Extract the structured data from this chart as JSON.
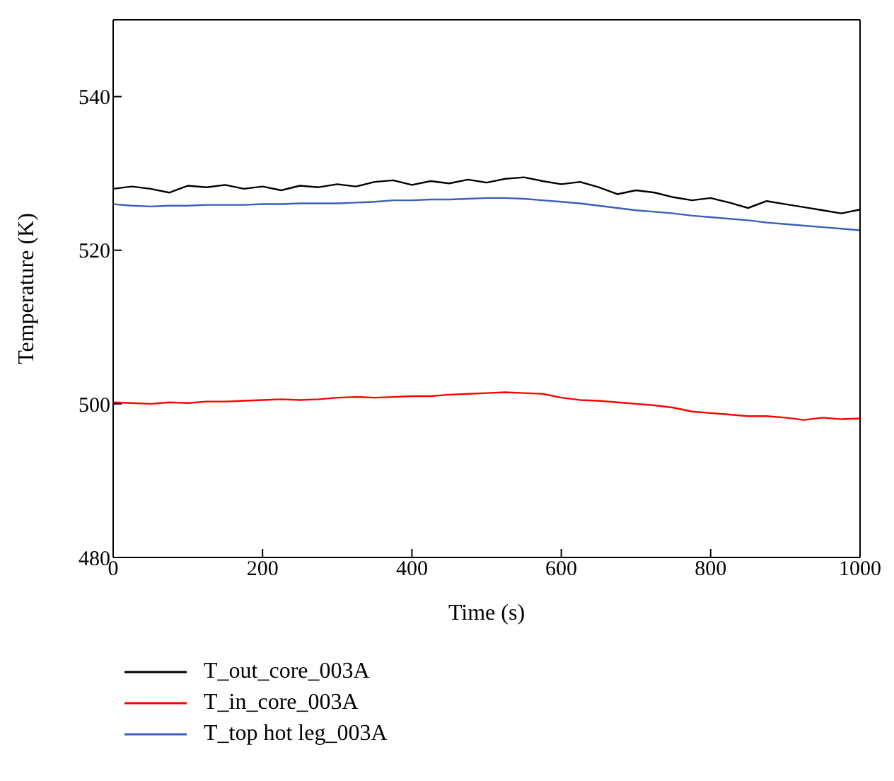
{
  "chart_data": {
    "type": "line",
    "xlabel": "Time (s)",
    "ylabel": "Temperature (K)",
    "x": [
      0,
      25,
      50,
      75,
      100,
      125,
      150,
      175,
      200,
      225,
      250,
      275,
      300,
      325,
      350,
      375,
      400,
      425,
      450,
      475,
      500,
      525,
      550,
      575,
      600,
      625,
      650,
      675,
      700,
      725,
      750,
      775,
      800,
      825,
      850,
      875,
      900,
      925,
      950,
      975,
      1000
    ],
    "series": [
      {
        "name": "T_out_core_003A",
        "color": "#000000",
        "values": [
          528,
          528.3,
          528,
          527.5,
          528.4,
          528.2,
          528.5,
          528,
          528.3,
          527.8,
          528.4,
          528.2,
          528.6,
          528.3,
          528.9,
          529.1,
          528.5,
          529,
          528.7,
          529.2,
          528.8,
          529.3,
          529.5,
          529,
          528.6,
          528.9,
          528.2,
          527.3,
          527.8,
          527.5,
          526.9,
          526.5,
          526.8,
          526.2,
          525.5,
          526.4,
          526,
          525.6,
          525.2,
          524.8,
          525.3
        ]
      },
      {
        "name": "T_in_core_003A",
        "color": "#ff0000",
        "values": [
          500.2,
          500.1,
          500,
          500.2,
          500.1,
          500.3,
          500.3,
          500.4,
          500.5,
          500.6,
          500.5,
          500.6,
          500.8,
          500.9,
          500.8,
          500.9,
          501,
          501,
          501.2,
          501.3,
          501.4,
          501.5,
          501.4,
          501.3,
          500.8,
          500.5,
          500.4,
          500.2,
          500,
          499.8,
          499.5,
          499,
          498.8,
          498.6,
          498.4,
          498.4,
          498.2,
          497.9,
          498.2,
          498,
          498.1
        ]
      },
      {
        "name": "T_top hot leg_003A",
        "color": "#3a5fb8",
        "values": [
          526,
          525.8,
          525.7,
          525.8,
          525.8,
          525.9,
          525.9,
          525.9,
          526,
          526,
          526.1,
          526.1,
          526.1,
          526.2,
          526.3,
          526.5,
          526.5,
          526.6,
          526.6,
          526.7,
          526.8,
          526.8,
          526.7,
          526.5,
          526.3,
          526.1,
          525.8,
          525.5,
          525.2,
          525,
          524.8,
          524.5,
          524.3,
          524.1,
          523.9,
          523.6,
          523.4,
          523.2,
          523,
          522.8,
          522.6
        ]
      }
    ],
    "xlim": [
      0,
      1000
    ],
    "xticks": [
      0,
      200,
      400,
      600,
      800,
      1000
    ],
    "ylim": [
      480,
      550
    ],
    "yticks": [
      480,
      500,
      520,
      540
    ],
    "grid": false,
    "legend": "bottom",
    "marker": "none",
    "line_style": "solid"
  }
}
